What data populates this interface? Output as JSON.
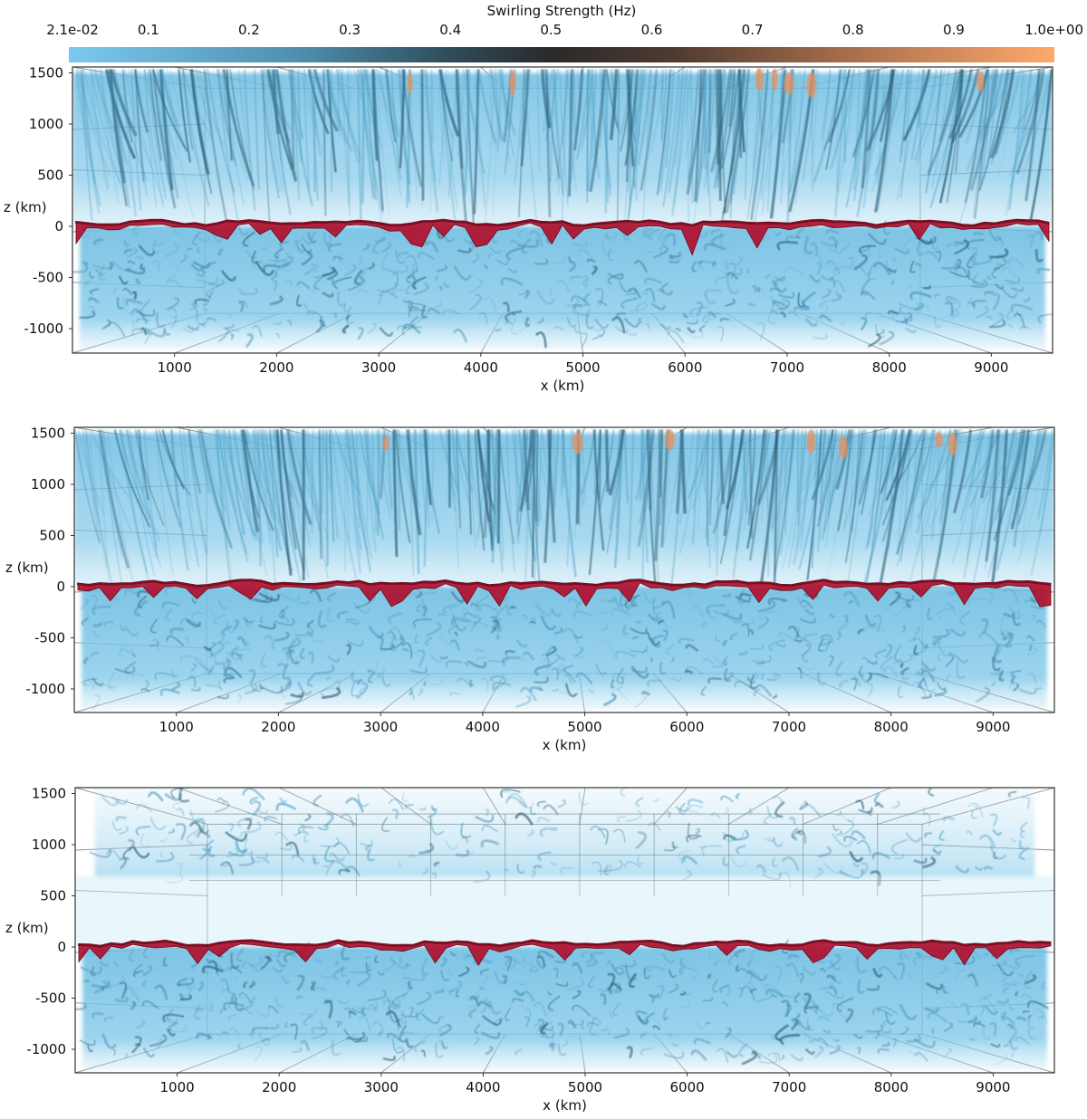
{
  "colorbar": {
    "title": "Swirling Strength (Hz)",
    "tick_labels": [
      "2.1e-02",
      "0.1",
      "0.2",
      "0.3",
      "0.4",
      "0.5",
      "0.6",
      "0.7",
      "0.8",
      "0.9",
      "1.0e+00"
    ],
    "tick_values": [
      0.021,
      0.1,
      0.2,
      0.3,
      0.4,
      0.5,
      0.6,
      0.7,
      0.8,
      0.9,
      1.0
    ],
    "range": [
      0.021,
      1.0
    ],
    "stops": [
      {
        "v": 0.021,
        "c": "#7cc8ef"
      },
      {
        "v": 0.25,
        "c": "#4e8fad"
      },
      {
        "v": 0.4,
        "c": "#2f4c5a"
      },
      {
        "v": 0.5,
        "c": "#2a2a2a"
      },
      {
        "v": 0.62,
        "c": "#4e3a30"
      },
      {
        "v": 0.78,
        "c": "#a06a4a"
      },
      {
        "v": 1.0,
        "c": "#ffa86c"
      }
    ]
  },
  "colors": {
    "volume": "#6fbde2",
    "volume_dark": "#2b5f78",
    "surface": "#b0102e",
    "surface_dark": "#6a0a1b",
    "hot": "#e8925c",
    "frame": "#333333"
  },
  "chart_data": [
    {
      "type": "volume-render",
      "panel": "top",
      "xlabel": "x (km)",
      "ylabel": "z (km)",
      "xlim": [
        0,
        9600
      ],
      "ylim": [
        -1200,
        1550
      ],
      "xticks": [
        1000,
        2000,
        3000,
        4000,
        5000,
        6000,
        7000,
        8000,
        9000
      ],
      "yticks": [
        1500,
        1000,
        500,
        0,
        -500,
        -1000
      ],
      "xtick_labels": [
        "1000",
        "2000",
        "3000",
        "4000",
        "5000",
        "6000",
        "7000",
        "8000",
        "9000"
      ],
      "ytick_labels": [
        "1500",
        "1000",
        "500",
        "0",
        "-500",
        "-1000"
      ],
      "upper_layer": [
        0,
        1500
      ],
      "lower_layer": [
        -1200,
        0
      ],
      "surface_z": 0
    },
    {
      "type": "volume-render",
      "panel": "middle",
      "xlabel": "x (km)",
      "ylabel": "z (km)",
      "xlim": [
        0,
        9600
      ],
      "ylim": [
        -1200,
        1550
      ],
      "xticks": [
        1000,
        2000,
        3000,
        4000,
        5000,
        6000,
        7000,
        8000,
        9000
      ],
      "yticks": [
        1500,
        1000,
        500,
        0,
        -500,
        -1000
      ],
      "xtick_labels": [
        "1000",
        "2000",
        "3000",
        "4000",
        "5000",
        "6000",
        "7000",
        "8000",
        "9000"
      ],
      "ytick_labels": [
        "1500",
        "1000",
        "500",
        "0",
        "-500",
        "-1000"
      ],
      "upper_layer": [
        0,
        1500
      ],
      "lower_layer": [
        -1200,
        0
      ],
      "surface_z": 0
    },
    {
      "type": "volume-render",
      "panel": "bottom",
      "xlabel": "x (km)",
      "ylabel": "z (km)",
      "xlim": [
        0,
        9600
      ],
      "ylim": [
        -1200,
        1550
      ],
      "xticks": [
        1000,
        2000,
        3000,
        4000,
        5000,
        6000,
        7000,
        8000,
        9000
      ],
      "yticks": [
        1500,
        1000,
        500,
        0,
        -500,
        -1000
      ],
      "xtick_labels": [
        "1000",
        "2000",
        "3000",
        "4000",
        "5000",
        "6000",
        "7000",
        "8000",
        "9000"
      ],
      "ytick_labels": [
        "1500",
        "1000",
        "500",
        "0",
        "-500",
        "-1000"
      ],
      "upper_layer": [
        700,
        1500
      ],
      "lower_layer": [
        -1200,
        0
      ],
      "surface_z": 0
    }
  ]
}
